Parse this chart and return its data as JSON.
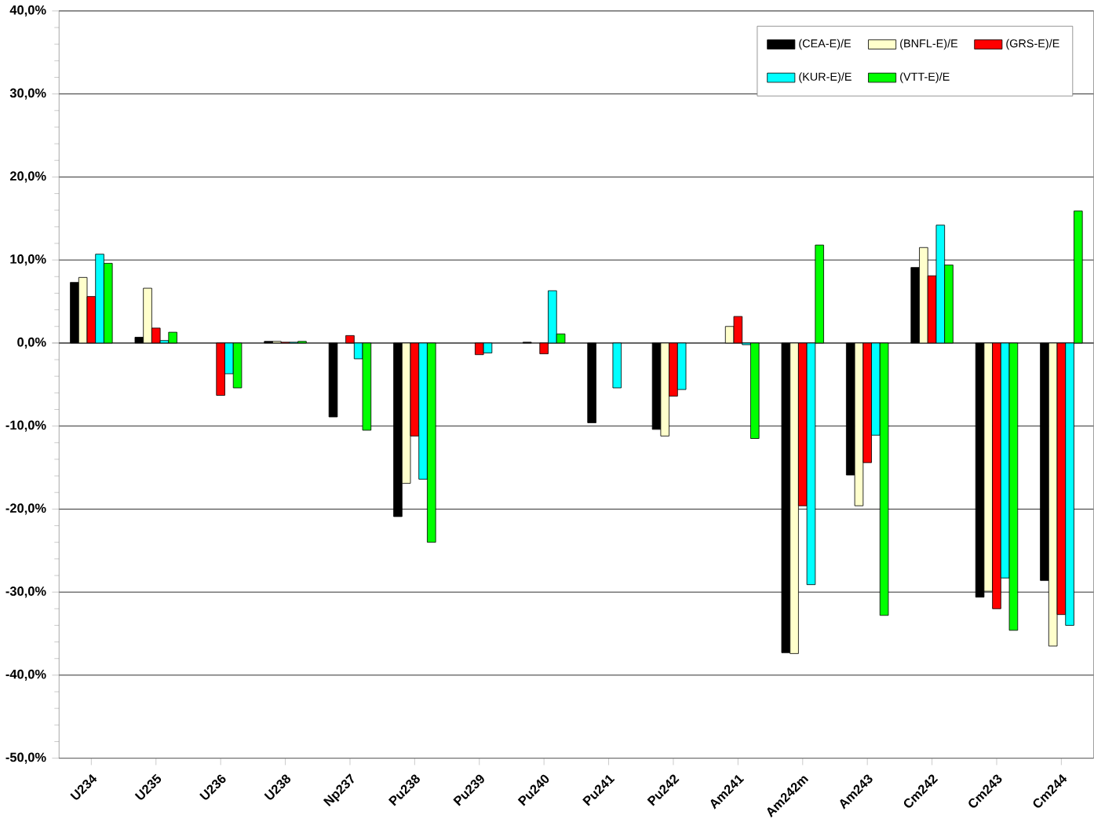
{
  "chart_data": {
    "type": "bar",
    "categories": [
      "U234",
      "U235",
      "U236",
      "U238",
      "Np237",
      "Pu238",
      "Pu239",
      "Pu240",
      "Pu241",
      "Pu242",
      "Am241",
      "Am242m",
      "Am243",
      "Cm242",
      "Cm243",
      "Cm244"
    ],
    "series": [
      {
        "name": "(CEA-E)/E",
        "color": "#000000",
        "values": [
          7.3,
          0.7,
          null,
          0.2,
          -8.9,
          -20.9,
          null,
          0.1,
          -9.6,
          -10.4,
          null,
          -37.3,
          -15.9,
          9.1,
          -30.6,
          -28.6
        ]
      },
      {
        "name": "(BNFL-E)/E",
        "color": "#ffffcc",
        "values": [
          7.9,
          6.6,
          null,
          0.2,
          null,
          -16.9,
          null,
          null,
          null,
          -11.2,
          2.0,
          -37.4,
          -19.6,
          11.5,
          -29.9,
          -36.5
        ]
      },
      {
        "name": "(GRS-E)/E",
        "color": "#ff0000",
        "values": [
          5.6,
          1.8,
          -6.3,
          0.1,
          0.9,
          -11.2,
          -1.4,
          -1.3,
          null,
          -6.4,
          3.2,
          -19.6,
          -14.4,
          8.1,
          -32.0,
          -32.7
        ]
      },
      {
        "name": "(KUR-E)/E",
        "color": "#00ffff",
        "values": [
          10.7,
          0.3,
          -3.7,
          0.1,
          -1.9,
          -16.4,
          -1.2,
          6.3,
          -5.4,
          -5.6,
          -0.2,
          -29.1,
          -11.1,
          14.2,
          -28.3,
          -34.0
        ]
      },
      {
        "name": "(VTT-E)/E",
        "color": "#00ff00",
        "values": [
          9.6,
          1.3,
          -5.4,
          0.2,
          -10.5,
          -24.0,
          null,
          1.1,
          null,
          null,
          -11.5,
          11.8,
          -32.8,
          9.4,
          -34.6,
          15.9
        ]
      }
    ],
    "ylim": [
      -50,
      40
    ],
    "yticks": [
      {
        "value": -50,
        "label": "-50,0%"
      },
      {
        "value": -40,
        "label": "-40,0%"
      },
      {
        "value": -30,
        "label": "-30,0%"
      },
      {
        "value": -20,
        "label": "-20,0%"
      },
      {
        "value": -10,
        "label": "-10,0%"
      },
      {
        "value": 0,
        "label": "0,0%"
      },
      {
        "value": 10,
        "label": "10,0%"
      },
      {
        "value": 20,
        "label": "20,0%"
      },
      {
        "value": 30,
        "label": "30,0%"
      },
      {
        "value": 40,
        "label": "40,0%"
      }
    ],
    "grid": "y",
    "legend": "top"
  }
}
